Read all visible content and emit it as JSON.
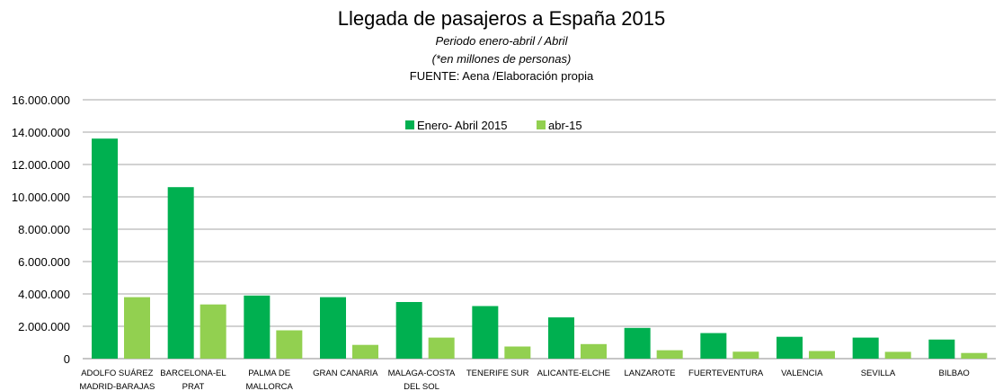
{
  "chart_data": {
    "type": "bar",
    "title": "Llegada de pasajeros a España 2015",
    "subtitle_lines": [
      "Periodo enero-abril / Abril",
      "(*en millones de personas)"
    ],
    "source": "FUENTE: Aena /Elaboración propia",
    "xlabel": "",
    "ylabel": "",
    "ylim": [
      0,
      16000000
    ],
    "y_ticks": [
      0,
      2000000,
      4000000,
      6000000,
      8000000,
      10000000,
      12000000,
      14000000,
      16000000
    ],
    "y_tick_labels": [
      "0",
      "2.000.000",
      "4.000.000",
      "6.000.000",
      "8.000.000",
      "10.000.000",
      "12.000.000",
      "14.000.000",
      "16.000.000"
    ],
    "grid": true,
    "legend_position": "top-center",
    "categories": [
      [
        "ADOLFO SUÁREZ",
        "MADRID-BARAJAS"
      ],
      [
        "BARCELONA-EL",
        "PRAT"
      ],
      [
        "PALMA DE",
        "MALLORCA"
      ],
      [
        "GRAN CANARIA"
      ],
      [
        "MALAGA-COSTA",
        "DEL SOL"
      ],
      [
        "TENERIFE SUR"
      ],
      [
        "ALICANTE-ELCHE"
      ],
      [
        "LANZAROTE"
      ],
      [
        "FUERTEVENTURA"
      ],
      [
        "VALENCIA"
      ],
      [
        "SEVILLA"
      ],
      [
        "BILBAO"
      ]
    ],
    "series": [
      {
        "name": "Enero- Abril 2015",
        "color": "#00B050",
        "values": [
          13600000,
          10600000,
          3900000,
          3800000,
          3500000,
          3250000,
          2550000,
          1900000,
          1580000,
          1350000,
          1300000,
          1180000
        ]
      },
      {
        "name": "abr-15",
        "color": "#92D050",
        "values": [
          3800000,
          3350000,
          1750000,
          850000,
          1300000,
          750000,
          900000,
          520000,
          430000,
          470000,
          420000,
          350000
        ]
      }
    ]
  }
}
